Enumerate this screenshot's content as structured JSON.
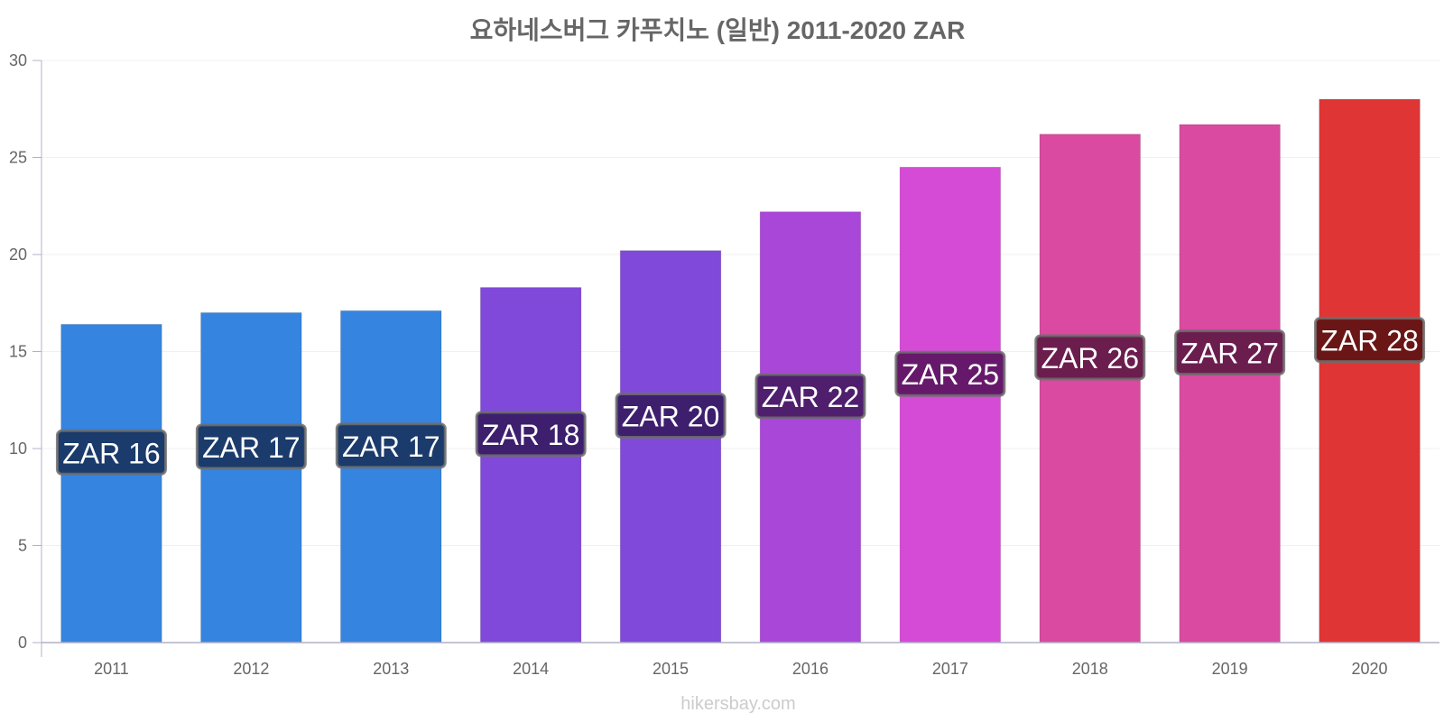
{
  "chart_data": {
    "type": "bar",
    "title": "요하네스버그 카푸치노 (일반) 2011-2020 ZAR",
    "xlabel": "",
    "ylabel": "",
    "ylim": [
      0,
      30
    ],
    "y_ticks": [
      0,
      5,
      10,
      15,
      20,
      25,
      30
    ],
    "grid": true,
    "categories": [
      "2011",
      "2012",
      "2013",
      "2014",
      "2015",
      "2016",
      "2017",
      "2018",
      "2019",
      "2020"
    ],
    "values": [
      16.4,
      17.0,
      17.1,
      18.3,
      20.2,
      22.2,
      24.5,
      26.2,
      26.7,
      28.0
    ],
    "labels": [
      "ZAR 16",
      "ZAR 17",
      "ZAR 17",
      "ZAR 18",
      "ZAR 20",
      "ZAR 22",
      "ZAR 25",
      "ZAR 26",
      "ZAR 27",
      "ZAR 28"
    ],
    "bar_colors": [
      "#3584e0",
      "#3584e0",
      "#3584e0",
      "#8049d9",
      "#8049d9",
      "#a947d9",
      "#d64bd6",
      "#d94aa0",
      "#d94aa0",
      "#e03535"
    ],
    "label_colors": [
      "#1a3b6b",
      "#1a3b6b",
      "#1a3b6b",
      "#3d1f6e",
      "#3d1f6e",
      "#4f1f6e",
      "#66196b",
      "#6b1d4e",
      "#6b1d4e",
      "#6b1616"
    ]
  },
  "watermark": "hikersbay.com"
}
